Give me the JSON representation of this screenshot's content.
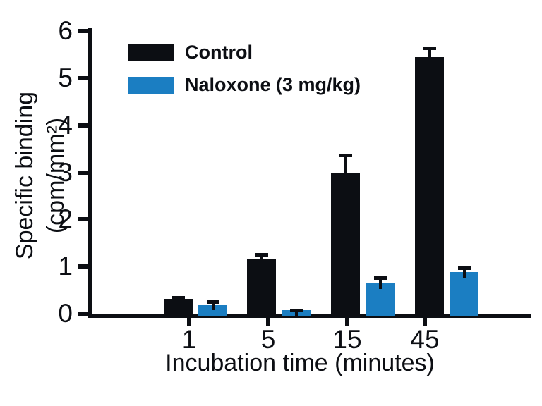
{
  "chart_data": {
    "type": "bar",
    "title": "",
    "xlabel": "Incubation time (minutes)",
    "ylabel_line1": "Specific binding",
    "ylabel_line2": "(cpm/mm²)",
    "categories": [
      "1",
      "5",
      "15",
      "45"
    ],
    "series": [
      {
        "name": "Control",
        "color": "#0c0e13",
        "values": [
          0.32,
          1.15,
          3.0,
          5.45
        ],
        "errors": [
          0.05,
          0.13,
          0.4,
          0.22
        ]
      },
      {
        "name": "Naloxone (3 mg/kg)",
        "color": "#1b7ec2",
        "values": [
          0.2,
          0.08,
          0.65,
          0.88
        ],
        "errors": [
          0.08,
          0.03,
          0.15,
          0.12
        ]
      }
    ],
    "y_ticks": [
      0,
      1,
      2,
      3,
      4,
      5,
      6
    ],
    "ylim": [
      0,
      6
    ],
    "grid": false,
    "legend_position": "upper-left",
    "error_bars": "upper",
    "axis_color": "#0c0e13",
    "background": "#ffffff"
  }
}
